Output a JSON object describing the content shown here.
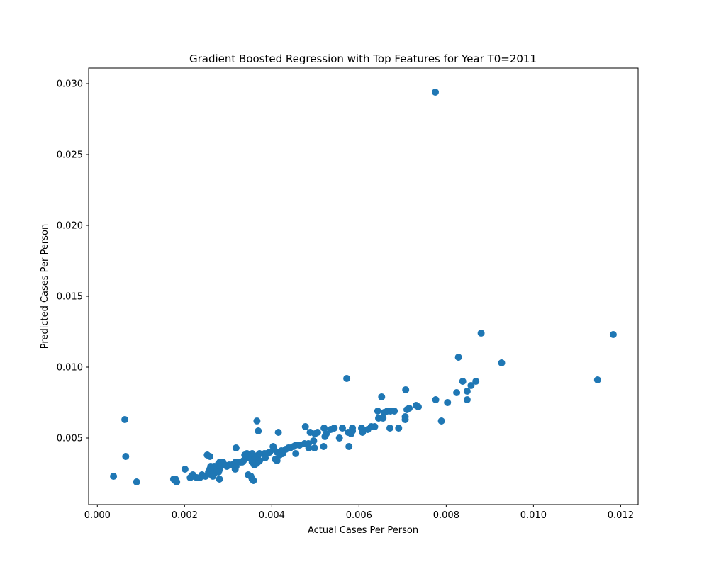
{
  "chart_data": {
    "type": "scatter",
    "title": "Gradient Boosted Regression with Top Features for Year T0=2011",
    "xlabel": "Actual Cases Per Person",
    "ylabel": "Predicted Cases Per Person",
    "xlim": [
      -0.0002,
      0.0124
    ],
    "ylim": [
      0.0003,
      0.0311
    ],
    "xticks": [
      0.0,
      0.002,
      0.004,
      0.006,
      0.008,
      0.01,
      0.012
    ],
    "xtick_labels": [
      "0.000",
      "0.002",
      "0.004",
      "0.006",
      "0.008",
      "0.010",
      "0.012"
    ],
    "yticks": [
      0.005,
      0.01,
      0.015,
      0.02,
      0.025,
      0.03
    ],
    "ytick_labels": [
      "0.005",
      "0.010",
      "0.015",
      "0.020",
      "0.025",
      "0.030"
    ],
    "grid": false,
    "marker_color": "#1f77b4",
    "points": [
      [
        0.00775,
        0.0294
      ],
      [
        0.0088,
        0.0124
      ],
      [
        0.01183,
        0.0123
      ],
      [
        0.00828,
        0.0107
      ],
      [
        0.00927,
        0.0103
      ],
      [
        0.01147,
        0.0091
      ],
      [
        0.00572,
        0.0092
      ],
      [
        0.00838,
        0.009
      ],
      [
        0.00868,
        0.009
      ],
      [
        0.00857,
        0.0087
      ],
      [
        0.00707,
        0.0084
      ],
      [
        0.00848,
        0.0083
      ],
      [
        0.00824,
        0.0082
      ],
      [
        0.00652,
        0.0079
      ],
      [
        0.00776,
        0.0077
      ],
      [
        0.00848,
        0.0077
      ],
      [
        0.00803,
        0.0075
      ],
      [
        0.00731,
        0.0073
      ],
      [
        0.00736,
        0.0072
      ],
      [
        0.00715,
        0.0071
      ],
      [
        0.0071,
        0.007
      ],
      [
        0.00643,
        0.0069
      ],
      [
        0.00672,
        0.0069
      ],
      [
        0.00665,
        0.0069
      ],
      [
        0.00658,
        0.0068
      ],
      [
        0.00681,
        0.0069
      ],
      [
        0.00706,
        0.0065
      ],
      [
        0.00706,
        0.0063
      ],
      [
        0.00645,
        0.0064
      ],
      [
        0.00655,
        0.0064
      ],
      [
        0.00789,
        0.0062
      ],
      [
        0.00063,
        0.0063
      ],
      [
        0.00366,
        0.0062
      ],
      [
        0.00671,
        0.0057
      ],
      [
        0.00691,
        0.0057
      ],
      [
        0.00628,
        0.0058
      ],
      [
        0.00636,
        0.0058
      ],
      [
        0.00606,
        0.0057
      ],
      [
        0.0062,
        0.0056
      ],
      [
        0.00562,
        0.0057
      ],
      [
        0.00585,
        0.0057
      ],
      [
        0.00543,
        0.0057
      ],
      [
        0.00535,
        0.0056
      ],
      [
        0.00585,
        0.0055
      ],
      [
        0.00575,
        0.0054
      ],
      [
        0.00608,
        0.0054
      ],
      [
        0.00582,
        0.0053
      ],
      [
        0.0052,
        0.0057
      ],
      [
        0.00505,
        0.0054
      ],
      [
        0.00477,
        0.0058
      ],
      [
        0.00488,
        0.0054
      ],
      [
        0.00499,
        0.0053
      ],
      [
        0.00369,
        0.0055
      ],
      [
        0.00415,
        0.0054
      ],
      [
        0.00525,
        0.0053
      ],
      [
        0.00522,
        0.0051
      ],
      [
        0.00555,
        0.005
      ],
      [
        0.00496,
        0.0048
      ],
      [
        0.00484,
        0.0046
      ],
      [
        0.00475,
        0.0046
      ],
      [
        0.00498,
        0.0043
      ],
      [
        0.00485,
        0.0043
      ],
      [
        0.00519,
        0.0044
      ],
      [
        0.00577,
        0.0044
      ],
      [
        0.00464,
        0.0045
      ],
      [
        0.00455,
        0.0045
      ],
      [
        0.0045,
        0.0044
      ],
      [
        0.00442,
        0.0043
      ],
      [
        0.00438,
        0.0043
      ],
      [
        0.00432,
        0.0042
      ],
      [
        0.00422,
        0.0041
      ],
      [
        0.00412,
        0.004
      ],
      [
        0.00403,
        0.0044
      ],
      [
        0.00405,
        0.0042
      ],
      [
        0.00395,
        0.004
      ],
      [
        0.00388,
        0.0039
      ],
      [
        0.00383,
        0.0039
      ],
      [
        0.00455,
        0.0039
      ],
      [
        0.00425,
        0.0039
      ],
      [
        0.00418,
        0.0038
      ],
      [
        0.00372,
        0.0039
      ],
      [
        0.00369,
        0.0038
      ],
      [
        0.00366,
        0.0037
      ],
      [
        0.00362,
        0.0036
      ],
      [
        0.00358,
        0.0035
      ],
      [
        0.00355,
        0.0039
      ],
      [
        0.00348,
        0.0037
      ],
      [
        0.00345,
        0.0036
      ],
      [
        0.00343,
        0.0039
      ],
      [
        0.00338,
        0.0038
      ],
      [
        0.00335,
        0.0034
      ],
      [
        0.00332,
        0.0033
      ],
      [
        0.00328,
        0.0033
      ],
      [
        0.00368,
        0.0033
      ],
      [
        0.00372,
        0.0034
      ],
      [
        0.00365,
        0.0032
      ],
      [
        0.0036,
        0.0031
      ],
      [
        0.00355,
        0.0033
      ],
      [
        0.00385,
        0.0036
      ],
      [
        0.00408,
        0.0035
      ],
      [
        0.00412,
        0.0034
      ],
      [
        0.00318,
        0.0043
      ],
      [
        0.00317,
        0.0033
      ],
      [
        0.00315,
        0.0032
      ],
      [
        0.00318,
        0.003
      ],
      [
        0.00316,
        0.0028
      ],
      [
        0.00308,
        0.0031
      ],
      [
        0.00302,
        0.0031
      ],
      [
        0.00297,
        0.003
      ],
      [
        0.00292,
        0.0031
      ],
      [
        0.00288,
        0.0033
      ],
      [
        0.00285,
        0.0032
      ],
      [
        0.00281,
        0.0033
      ],
      [
        0.00278,
        0.0032
      ],
      [
        0.00275,
        0.003
      ],
      [
        0.00272,
        0.0029
      ],
      [
        0.00268,
        0.003
      ],
      [
        0.00265,
        0.0029
      ],
      [
        0.0026,
        0.003
      ],
      [
        0.00258,
        0.0028
      ],
      [
        0.00255,
        0.0026
      ],
      [
        0.00252,
        0.0038
      ],
      [
        0.00258,
        0.0037
      ],
      [
        0.00262,
        0.0024
      ],
      [
        0.00265,
        0.0023
      ],
      [
        0.00268,
        0.0025
      ],
      [
        0.00275,
        0.0027
      ],
      [
        0.00281,
        0.0028
      ],
      [
        0.00278,
        0.0026
      ],
      [
        0.00248,
        0.0023
      ],
      [
        0.0024,
        0.0024
      ],
      [
        0.00235,
        0.0022
      ],
      [
        0.00228,
        0.0022
      ],
      [
        0.00221,
        0.0023
      ],
      [
        0.00216,
        0.0023
      ],
      [
        0.00213,
        0.0022
      ],
      [
        0.00219,
        0.0024
      ],
      [
        0.00201,
        0.0028
      ],
      [
        0.0028,
        0.0021
      ],
      [
        0.00346,
        0.0024
      ],
      [
        0.00352,
        0.0023
      ],
      [
        0.00355,
        0.0021
      ],
      [
        0.00358,
        0.002
      ],
      [
        0.00175,
        0.0021
      ],
      [
        0.00178,
        0.002
      ],
      [
        0.00182,
        0.0019
      ],
      [
        0.00179,
        0.0021
      ],
      [
        0.00065,
        0.0037
      ],
      [
        0.00037,
        0.0023
      ],
      [
        0.0009,
        0.0019
      ]
    ]
  }
}
